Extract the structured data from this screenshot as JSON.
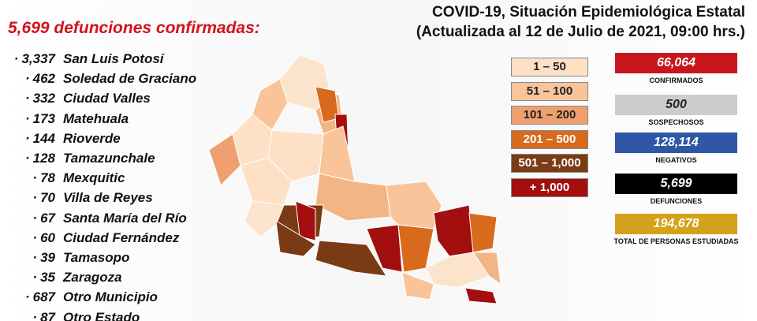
{
  "header": {
    "title": "COVID-19, Situación Epidemiológica Estatal",
    "subtitle": "(Actualizada al 12 de Julio de 2021, 09:00 hrs.)"
  },
  "deaths": {
    "title": "5,699 defunciones confirmadas:",
    "rows": [
      {
        "value": "3,337",
        "name": "San Luis Potosí"
      },
      {
        "value": "462",
        "name": "Soledad de Graciano"
      },
      {
        "value": "332",
        "name": "Ciudad Valles"
      },
      {
        "value": "173",
        "name": "Matehuala"
      },
      {
        "value": "144",
        "name": "Rioverde"
      },
      {
        "value": "128",
        "name": "Tamazunchale"
      },
      {
        "value": "78",
        "name": "Mexquitic"
      },
      {
        "value": "70",
        "name": "Villa de Reyes"
      },
      {
        "value": "67",
        "name": "Santa María del Río"
      },
      {
        "value": "60",
        "name": "Ciudad Fernández"
      },
      {
        "value": "39",
        "name": "Tamasopo"
      },
      {
        "value": "35",
        "name": "Zaragoza"
      },
      {
        "value": "687",
        "name": "Otro Municipio"
      },
      {
        "value": "87",
        "name": "Otro Estado"
      }
    ]
  },
  "legend": [
    {
      "label": "1 – 50",
      "color": "#fde0c5"
    },
    {
      "label": "51 – 100",
      "color": "#f9c49a"
    },
    {
      "label": "101 – 200",
      "color": "#f0a070"
    },
    {
      "label": "201 – 500",
      "color": "#d86a1e"
    },
    {
      "label": "501 – 1,000",
      "color": "#7a3b14"
    },
    {
      "label": "+ 1,000",
      "color": "#a30e0e"
    }
  ],
  "stats": [
    {
      "value": "66,064",
      "label": "CONFIRMADOS",
      "color": "#c8161d"
    },
    {
      "value": "500",
      "label": "SOSPECHOSOS",
      "color": "#cccccc"
    },
    {
      "value": "128,114",
      "label": "NEGATIVOS",
      "color": "#2e57a6"
    },
    {
      "value": "5,699",
      "label": "DEFUNCIONES",
      "color": "#000000"
    },
    {
      "value": "194,678",
      "label": "TOTAL DE PERSONAS ESTUDIADAS",
      "color": "#d4a21a"
    }
  ]
}
